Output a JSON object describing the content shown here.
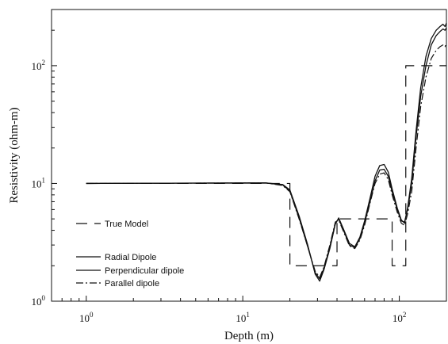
{
  "chart_data": {
    "type": "line",
    "xlabel": "Depth (m)",
    "ylabel": "Resistivity (ohm-m)",
    "xscale": "log",
    "yscale": "log",
    "xlim": [
      0.6,
      200
    ],
    "ylim": [
      1,
      300
    ],
    "x_ticks": [
      {
        "value": 1,
        "label": "10",
        "exp": "0"
      },
      {
        "value": 10,
        "label": "10",
        "exp": "1"
      },
      {
        "value": 100,
        "label": "10",
        "exp": "2"
      }
    ],
    "y_ticks": [
      {
        "value": 1,
        "label": "10",
        "exp": "0"
      },
      {
        "value": 10,
        "label": "10",
        "exp": "1"
      },
      {
        "value": 100,
        "label": "10",
        "exp": "2"
      }
    ],
    "legend_position": "bottom-left",
    "series": [
      {
        "name": "True Model",
        "dash": "14,9",
        "width": 1.2,
        "points": [
          [
            1,
            10
          ],
          [
            20,
            10
          ],
          [
            20,
            2
          ],
          [
            40,
            2
          ],
          [
            40,
            5
          ],
          [
            90,
            5
          ],
          [
            90,
            2
          ],
          [
            110,
            2
          ],
          [
            110,
            100
          ],
          [
            200,
            100
          ]
        ]
      },
      {
        "name": "Radial Dipole",
        "dash": "",
        "width": 1.3,
        "points": [
          [
            1,
            10
          ],
          [
            14,
            10.1
          ],
          [
            18,
            9.7
          ],
          [
            20,
            8.6
          ],
          [
            23,
            5.0
          ],
          [
            26,
            2.9
          ],
          [
            29,
            1.75
          ],
          [
            31,
            1.55
          ],
          [
            33,
            1.9
          ],
          [
            36,
            2.9
          ],
          [
            39,
            4.6
          ],
          [
            41,
            5.0
          ],
          [
            44,
            4.0
          ],
          [
            48,
            3.0
          ],
          [
            52,
            2.85
          ],
          [
            56,
            3.4
          ],
          [
            60,
            4.6
          ],
          [
            65,
            7.0
          ],
          [
            70,
            10.5
          ],
          [
            75,
            13.0
          ],
          [
            80,
            13.2
          ],
          [
            85,
            11.5
          ],
          [
            90,
            8.5
          ],
          [
            97,
            6.0
          ],
          [
            103,
            4.8
          ],
          [
            108,
            4.7
          ],
          [
            113,
            6.0
          ],
          [
            120,
            10.0
          ],
          [
            128,
            25.0
          ],
          [
            137,
            55.0
          ],
          [
            148,
            100.0
          ],
          [
            160,
            150.0
          ],
          [
            172,
            180.0
          ],
          [
            182,
            195.0
          ],
          [
            190,
            205.0
          ],
          [
            196,
            200.0
          ],
          [
            200,
            210.0
          ]
        ]
      },
      {
        "name": "Perpendicular dipole",
        "dash": "",
        "width": 1.3,
        "points": [
          [
            1,
            10
          ],
          [
            14,
            10.1
          ],
          [
            18,
            9.8
          ],
          [
            20,
            8.8
          ],
          [
            23,
            5.2
          ],
          [
            26,
            3.0
          ],
          [
            29,
            1.7
          ],
          [
            31,
            1.48
          ],
          [
            33,
            1.85
          ],
          [
            36,
            2.8
          ],
          [
            39,
            4.5
          ],
          [
            41,
            5.1
          ],
          [
            44,
            4.1
          ],
          [
            48,
            3.1
          ],
          [
            52,
            2.9
          ],
          [
            56,
            3.5
          ],
          [
            60,
            4.8
          ],
          [
            65,
            7.5
          ],
          [
            70,
            11.5
          ],
          [
            75,
            14.2
          ],
          [
            80,
            14.5
          ],
          [
            85,
            12.5
          ],
          [
            90,
            9.0
          ],
          [
            97,
            6.2
          ],
          [
            103,
            4.9
          ],
          [
            108,
            4.6
          ],
          [
            113,
            6.2
          ],
          [
            120,
            11.0
          ],
          [
            128,
            28.0
          ],
          [
            137,
            65.0
          ],
          [
            148,
            120.0
          ],
          [
            160,
            170.0
          ],
          [
            172,
            200.0
          ],
          [
            182,
            215.0
          ],
          [
            190,
            225.0
          ],
          [
            196,
            215.0
          ],
          [
            200,
            230.0
          ]
        ]
      },
      {
        "name": "Parallel dipole",
        "dash": "9,3,2,3",
        "width": 1.2,
        "points": [
          [
            1,
            10
          ],
          [
            14,
            10.1
          ],
          [
            18,
            9.6
          ],
          [
            20,
            8.5
          ],
          [
            23,
            4.9
          ],
          [
            26,
            2.9
          ],
          [
            29,
            1.8
          ],
          [
            31,
            1.6
          ],
          [
            33,
            1.95
          ],
          [
            36,
            3.0
          ],
          [
            39,
            4.7
          ],
          [
            41,
            4.9
          ],
          [
            44,
            3.9
          ],
          [
            48,
            2.95
          ],
          [
            52,
            2.8
          ],
          [
            56,
            3.3
          ],
          [
            60,
            4.4
          ],
          [
            65,
            6.8
          ],
          [
            70,
            10.0
          ],
          [
            75,
            12.0
          ],
          [
            80,
            12.3
          ],
          [
            85,
            10.8
          ],
          [
            90,
            8.0
          ],
          [
            97,
            5.7
          ],
          [
            103,
            4.6
          ],
          [
            108,
            4.4
          ],
          [
            113,
            5.5
          ],
          [
            120,
            8.5
          ],
          [
            128,
            20.0
          ],
          [
            137,
            45.0
          ],
          [
            148,
            80.0
          ],
          [
            160,
            115.0
          ],
          [
            172,
            135.0
          ],
          [
            182,
            145.0
          ],
          [
            190,
            150.0
          ],
          [
            196,
            145.0
          ],
          [
            200,
            155.0
          ]
        ]
      }
    ]
  }
}
